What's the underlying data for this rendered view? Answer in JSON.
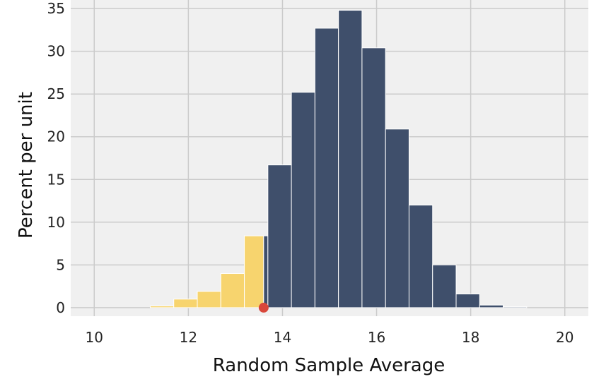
{
  "chart_data": {
    "type": "bar",
    "title": "",
    "xlabel": "Random Sample Average",
    "ylabel": "Percent per unit",
    "xlim": [
      9.5,
      20.5
    ],
    "ylim": [
      -1,
      36
    ],
    "xticks": [
      10,
      12,
      14,
      16,
      18,
      20
    ],
    "yticks": [
      0,
      5,
      10,
      15,
      20,
      25,
      30,
      35
    ],
    "grid": true,
    "background": "#f0f0f0",
    "bins": [
      {
        "start": 9.69,
        "end": 10.19,
        "value": 0.0
      },
      {
        "start": 10.19,
        "end": 10.69,
        "value": 0.0
      },
      {
        "start": 10.69,
        "end": 11.19,
        "value": 0.0
      },
      {
        "start": 11.19,
        "end": 11.69,
        "value": 0.2
      },
      {
        "start": 11.69,
        "end": 12.19,
        "value": 1.0
      },
      {
        "start": 12.19,
        "end": 12.69,
        "value": 1.9
      },
      {
        "start": 12.69,
        "end": 13.19,
        "value": 4.0
      },
      {
        "start": 13.19,
        "end": 13.69,
        "value": 8.4
      },
      {
        "start": 13.69,
        "end": 14.19,
        "value": 16.7
      },
      {
        "start": 14.19,
        "end": 14.69,
        "value": 25.2
      },
      {
        "start": 14.69,
        "end": 15.19,
        "value": 32.7
      },
      {
        "start": 15.19,
        "end": 15.69,
        "value": 34.8
      },
      {
        "start": 15.69,
        "end": 16.19,
        "value": 30.4
      },
      {
        "start": 16.19,
        "end": 16.69,
        "value": 20.9
      },
      {
        "start": 16.69,
        "end": 17.19,
        "value": 12.0
      },
      {
        "start": 17.19,
        "end": 17.69,
        "value": 5.0
      },
      {
        "start": 17.69,
        "end": 18.19,
        "value": 1.6
      },
      {
        "start": 18.19,
        "end": 18.69,
        "value": 0.3
      },
      {
        "start": 18.69,
        "end": 19.19,
        "value": 0.1
      },
      {
        "start": 19.19,
        "end": 19.69,
        "value": 0.0
      }
    ],
    "shade_below": 13.6,
    "colors": {
      "bar": "#3f4f6b",
      "shaded": "#f7d46e",
      "marker": "#d9473b",
      "grid": "#cbcbcb"
    },
    "marker_point": {
      "x": 13.6,
      "y": 0
    }
  }
}
